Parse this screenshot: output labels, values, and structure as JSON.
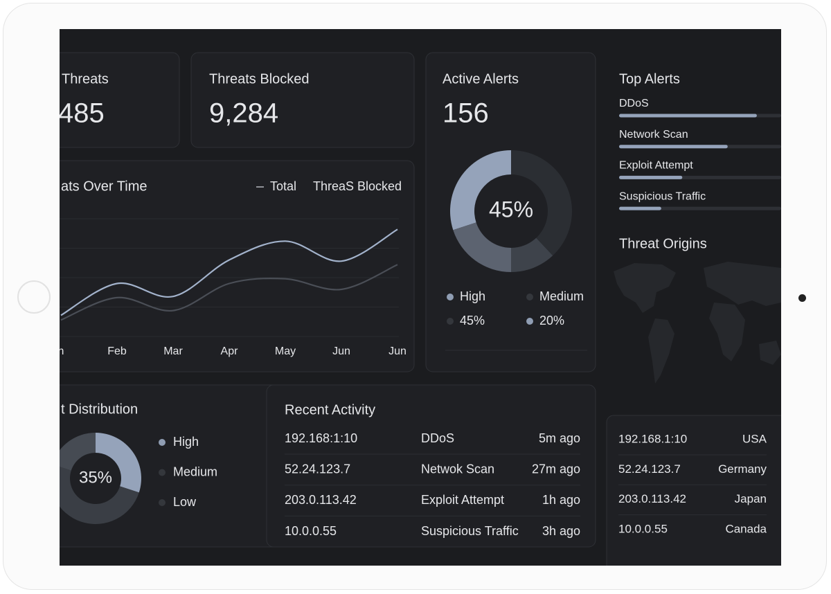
{
  "cards": [
    {
      "title": "Threats",
      "value": "485"
    },
    {
      "title": "Threats Blocked",
      "value": "9,284"
    }
  ],
  "threats_chart": {
    "type": "line",
    "title": "ats Over Time",
    "categories": [
      "n",
      "Feb",
      "Mar",
      "Apr",
      "May",
      "Jun",
      "Jun"
    ],
    "ylim": [
      0,
      100
    ],
    "grid": true,
    "series": [
      {
        "name": "Total",
        "color": "#a3b3cc",
        "values": [
          18,
          45,
          34,
          65,
          81,
          64,
          91
        ]
      },
      {
        "name": "ThreaS Blocked",
        "color": "#4a4e56",
        "values": [
          14,
          33,
          22,
          45,
          49,
          40,
          61
        ]
      }
    ]
  },
  "active_alerts": {
    "title": "Active Alerts",
    "value": "156",
    "donut": {
      "type": "pie",
      "center_label": "45%",
      "clockwise": false,
      "values": [
        30,
        20,
        12,
        38
      ],
      "colors": [
        "#95a3ba",
        "#5c6370",
        "#3e434b",
        "#2b2e33"
      ]
    },
    "legend": [
      {
        "label": "High",
        "color": "#8f9db3"
      },
      {
        "label": "Medium",
        "color": "#34373c"
      },
      {
        "label": "45%",
        "color": "#34373c"
      },
      {
        "label": "20%",
        "color": "#8f9db3"
      }
    ]
  },
  "top_alerts": {
    "type": "bar",
    "title": "Top Alerts",
    "categories": [
      "DDoS",
      "Network Scan",
      "Exploit Attempt",
      "Suspicious Traffic"
    ],
    "values": [
      85,
      67,
      39,
      26
    ],
    "xlim": [
      0,
      100
    ],
    "color": "#95a3ba"
  },
  "threat_origins": {
    "title": "Threat Origins"
  },
  "distribution": {
    "type": "pie",
    "title": "t Distribution",
    "center_label": "35%",
    "clockwise": true,
    "categories": [
      "High",
      "Medium",
      "Low"
    ],
    "values": [
      30,
      50,
      20
    ],
    "colors": [
      "#95a3ba",
      "#3a3e45",
      "#464b53"
    ],
    "legend_colors": [
      "#8f9db3",
      "#34373c",
      "#34373c"
    ]
  },
  "recent_activity": {
    "title": "Recent Activity",
    "rows": [
      [
        "192.168:1:10",
        "DDoS",
        "5m ago"
      ],
      [
        "52.24.123.7",
        "Netwok Scan",
        "27m ago"
      ],
      [
        "203.0.113.42",
        "Exploit Attempt",
        "1h ago"
      ],
      [
        "10.0.0.55",
        "Suspicious Traffic",
        "3h ago"
      ]
    ]
  },
  "origins_table": {
    "rows": [
      [
        "192.168.1:10",
        "USA"
      ],
      [
        "52.24.123.7",
        "Germany"
      ],
      [
        "203.0.113.42",
        "Japan"
      ],
      [
        "10.0.0.55",
        "Canada"
      ]
    ]
  }
}
